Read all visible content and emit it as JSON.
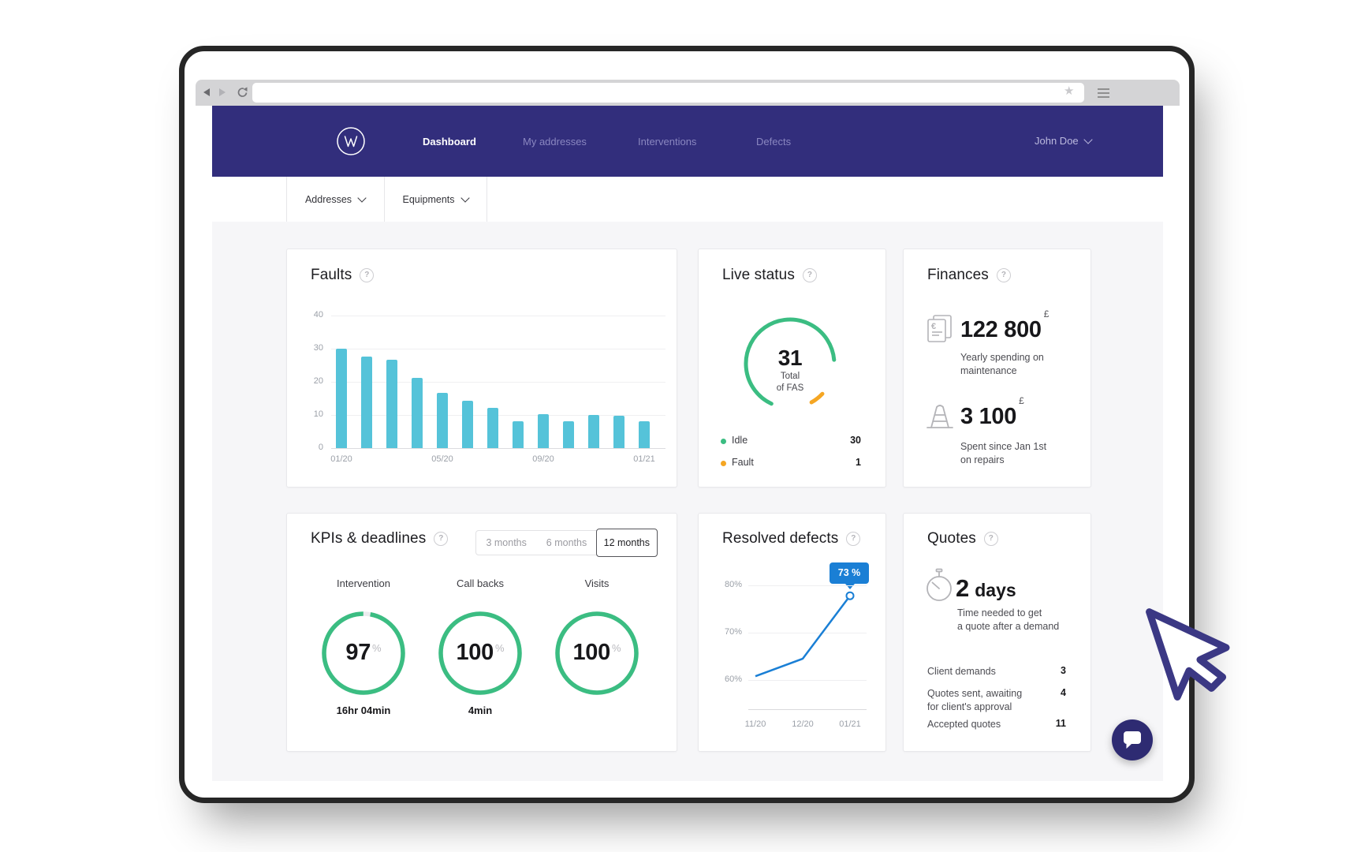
{
  "browser": {
    "address_value": "",
    "icons": {
      "back": "back-arrow-icon",
      "forward": "forward-arrow-icon",
      "reload": "reload-icon",
      "bookmark": "star-icon",
      "menu": "hamburger-menu-icon"
    }
  },
  "navbar": {
    "logo": "wm-monogram-logo",
    "items": [
      {
        "label": "Dashboard",
        "active": true
      },
      {
        "label": "My addresses",
        "active": false
      },
      {
        "label": "Interventions",
        "active": false
      },
      {
        "label": "Defects",
        "active": false
      }
    ],
    "user": {
      "name": "John Doe"
    }
  },
  "subnav": {
    "filters": [
      {
        "label": "Addresses"
      },
      {
        "label": "Equipments"
      }
    ]
  },
  "cards": {
    "faults": {
      "title": "Faults",
      "chart_data": {
        "type": "bar",
        "values": [
          30,
          27.5,
          26.7,
          21.2,
          16.7,
          14.3,
          12.1,
          8.1,
          10.2,
          8.1,
          9.9,
          9.7,
          8.2
        ],
        "x_tick_labels": [
          "01/20",
          "05/20",
          "09/20",
          "01/21"
        ],
        "x_tick_bar_index": [
          0,
          4,
          8,
          12
        ],
        "yticks": [
          40,
          30,
          20,
          10,
          0
        ],
        "ylim": [
          0,
          40
        ],
        "bar_color": "#55c3d9"
      }
    },
    "live_status": {
      "title": "Live status",
      "total_value": "31",
      "total_caption_line1": "Total",
      "total_caption_line2": "of FAS",
      "legend": [
        {
          "label": "Idle",
          "value": "30",
          "color": "#3bbd82"
        },
        {
          "label": "Fault",
          "value": "1",
          "color": "#f5a623"
        }
      ]
    },
    "finances": {
      "title": "Finances",
      "items": [
        {
          "icon": "invoice-euro-icon",
          "value": "122 800",
          "currency": "£",
          "caption_line1": "Yearly spending on",
          "caption_line2": "maintenance"
        },
        {
          "icon": "traffic-cone-icon",
          "value": "3 100",
          "currency": "£",
          "caption_line1": "Spent since Jan 1st",
          "caption_line2": "on repairs"
        }
      ]
    },
    "kpis": {
      "title": "KPIs & deadlines",
      "range_options": [
        {
          "label": "3 months",
          "selected": false
        },
        {
          "label": "6 months",
          "selected": false
        },
        {
          "label": "12 months",
          "selected": true
        }
      ],
      "gauges": [
        {
          "label": "Intervention",
          "value": "97",
          "unit": "%",
          "percent": 97,
          "sublabel": "16hr 04min"
        },
        {
          "label": "Call backs",
          "value": "100",
          "unit": "%",
          "percent": 100,
          "sublabel": "4min"
        },
        {
          "label": "Visits",
          "value": "100",
          "unit": "%",
          "percent": 100,
          "sublabel": ""
        }
      ]
    },
    "resolved_defects": {
      "title": "Resolved defects",
      "tooltip": "73 %",
      "chart_data": {
        "type": "line",
        "x": [
          "11/20",
          "12/20",
          "01/21"
        ],
        "values": [
          60.8,
          64.5,
          77.8
        ],
        "yticks": [
          80,
          70,
          60
        ],
        "ytick_suffix": "%",
        "ylim": [
          57,
          83
        ],
        "line_color": "#1a7fd5"
      }
    },
    "quotes": {
      "title": "Quotes",
      "headline_value": "2",
      "headline_unit": "days",
      "caption_line1": "Time needed to get",
      "caption_line2": "a quote after a demand",
      "rows": [
        {
          "label_line1": "Client demands",
          "label_line2": "",
          "value": "3"
        },
        {
          "label_line1": "Quotes sent, awaiting",
          "label_line2": "for client's approval",
          "value": "4"
        },
        {
          "label_line1": "Accepted quotes",
          "label_line2": "",
          "value": "11"
        }
      ]
    }
  },
  "chat_button": {
    "icon": "chat-bubble-icon"
  }
}
